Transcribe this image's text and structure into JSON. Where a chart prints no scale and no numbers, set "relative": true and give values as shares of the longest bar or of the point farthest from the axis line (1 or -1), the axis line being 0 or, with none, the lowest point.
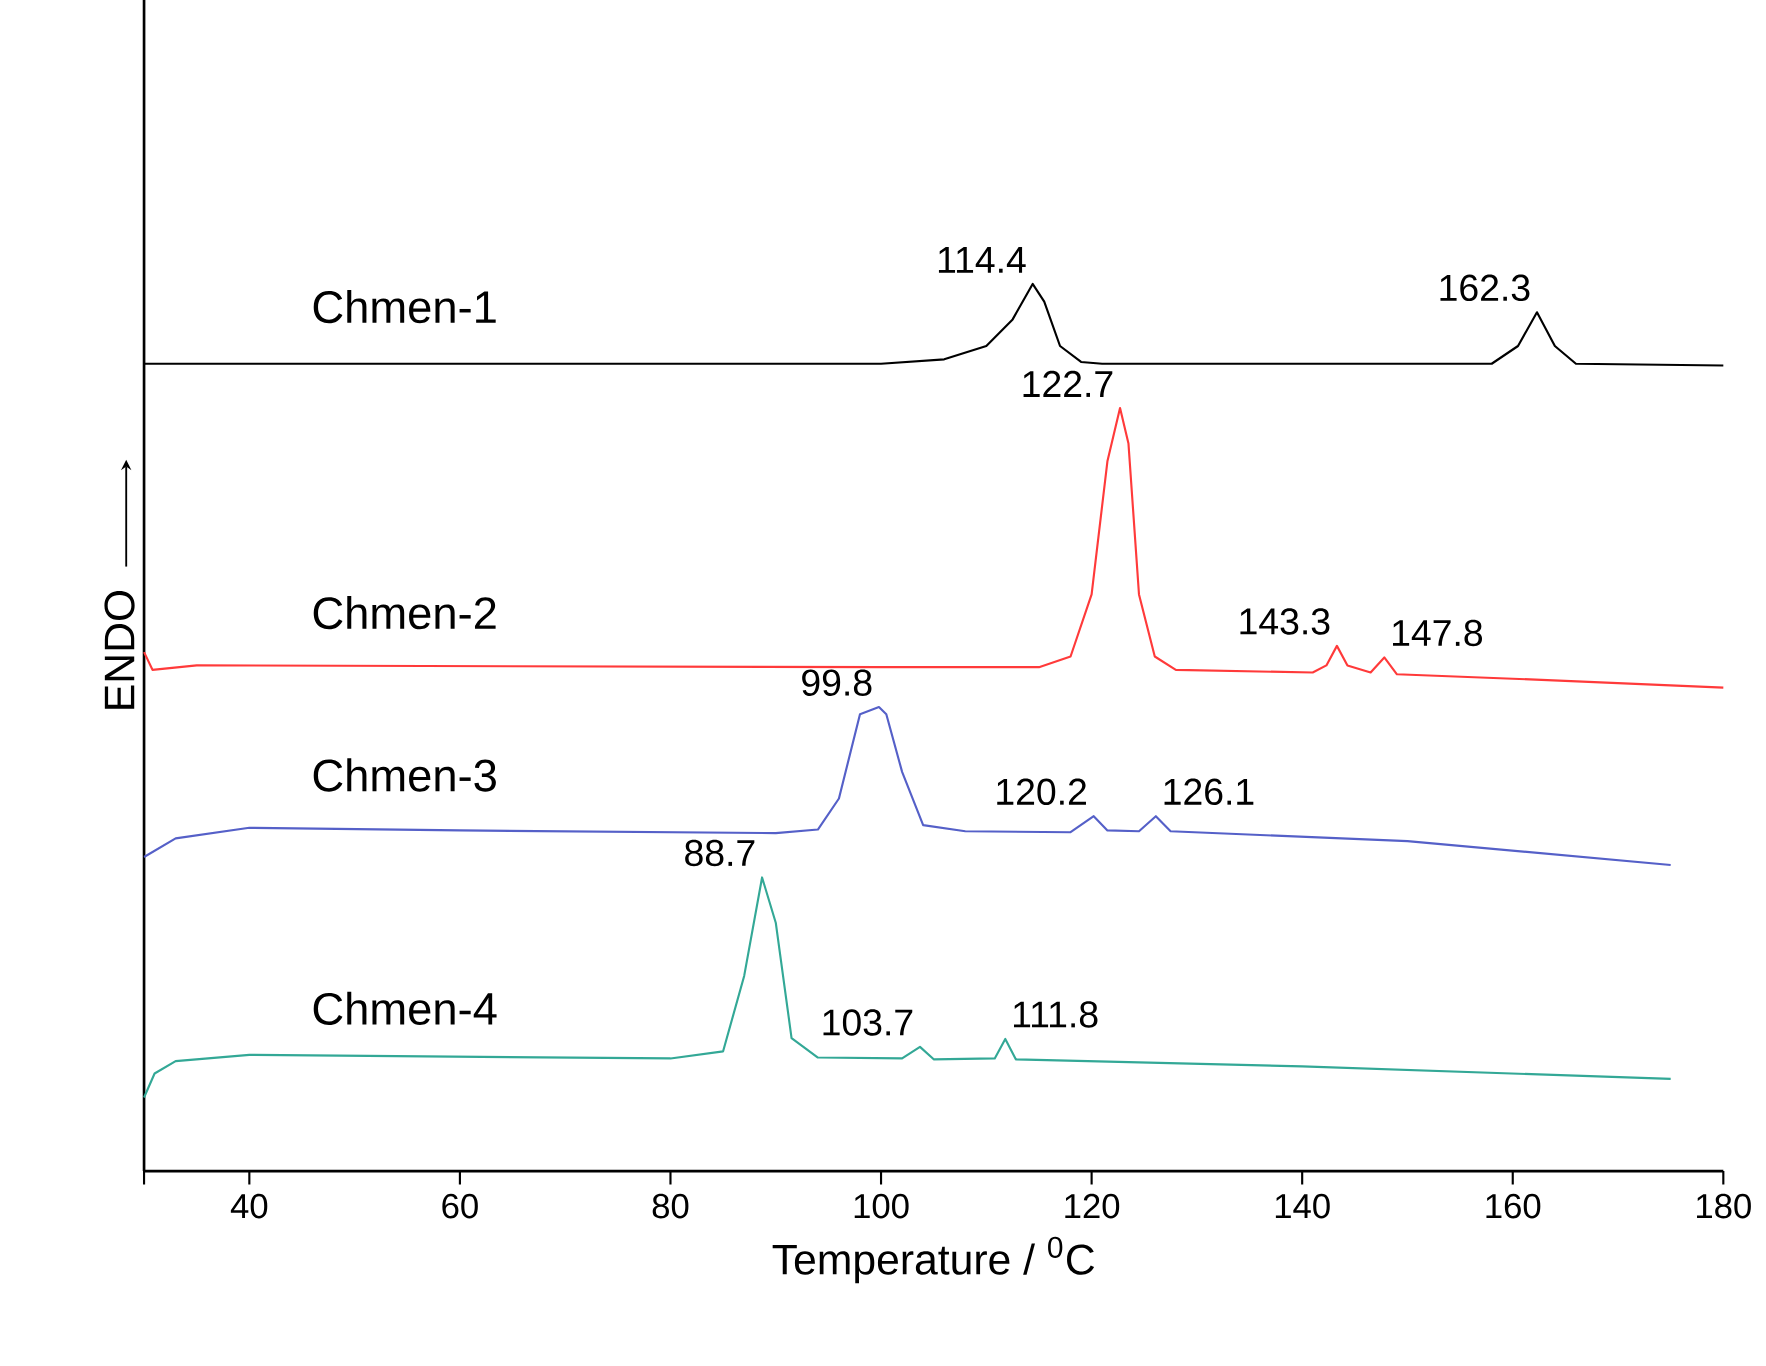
{
  "chart_data": {
    "type": "line",
    "relative": true,
    "xlabel": "Temperature / $^{0}$C",
    "ylabel": "ENDO",
    "xlim": [
      30,
      180
    ],
    "xticks": [
      {
        "value": 30,
        "label": null
      },
      40,
      60,
      80,
      100,
      120,
      140,
      160,
      180
    ],
    "series": [
      {
        "name": "Chmen-1",
        "color": "#000000",
        "x": [
          30,
          100,
          106,
          110,
          112.5,
          114.4,
          115.5,
          117,
          119,
          121,
          158,
          160.5,
          162.3,
          164,
          166,
          180
        ],
        "values": [
          0.91,
          0.91,
          0.915,
          0.93,
          0.96,
          1.0,
          0.98,
          0.93,
          0.912,
          0.91,
          0.91,
          0.93,
          0.968,
          0.93,
          0.91,
          0.908
        ]
      },
      {
        "name": "Chmen-2",
        "color": "#ff3a3a",
        "x": [
          30,
          30.8,
          35,
          100,
          115,
          118,
          120,
          121.5,
          122.7,
          123.5,
          124.5,
          126,
          128,
          141,
          142.3,
          143.3,
          144.3,
          146.5,
          147.8,
          149,
          160,
          180
        ],
        "values": [
          0.585,
          0.565,
          0.57,
          0.568,
          0.568,
          0.58,
          0.65,
          0.8,
          0.86,
          0.82,
          0.65,
          0.58,
          0.565,
          0.562,
          0.57,
          0.592,
          0.57,
          0.562,
          0.579,
          0.56,
          0.555,
          0.545
        ]
      },
      {
        "name": "Chmen-3",
        "color": "#5560c8",
        "x": [
          30,
          33,
          40,
          60,
          90,
          94,
          96,
          98,
          99.8,
          100.5,
          102,
          104,
          108,
          118,
          120.2,
          121.5,
          124.5,
          126.1,
          127.5,
          150,
          175
        ],
        "values": [
          0.354,
          0.375,
          0.387,
          0.384,
          0.381,
          0.385,
          0.42,
          0.515,
          0.523,
          0.515,
          0.45,
          0.39,
          0.383,
          0.382,
          0.4,
          0.384,
          0.383,
          0.4,
          0.383,
          0.372,
          0.345
        ]
      },
      {
        "name": "Chmen-4",
        "color": "#33a896",
        "x": [
          30,
          31,
          33,
          40,
          80,
          85,
          87,
          88.7,
          90,
          91.5,
          94,
          102,
          103.7,
          105,
          110.8,
          111.8,
          112.8,
          140,
          175
        ],
        "values": [
          0.083,
          0.11,
          0.124,
          0.131,
          0.127,
          0.135,
          0.22,
          0.331,
          0.28,
          0.15,
          0.128,
          0.127,
          0.14,
          0.126,
          0.127,
          0.149,
          0.126,
          0.118,
          0.104
        ]
      }
    ],
    "annotations": [
      {
        "text": "114.4",
        "x": 114.4,
        "y": 1.0
      },
      {
        "text": "162.3",
        "x": 162.3,
        "y": 0.968
      },
      {
        "text": "122.7",
        "x": 122.7,
        "y": 0.86
      },
      {
        "text": "143.3",
        "x": 143.3,
        "y": 0.592
      },
      {
        "text": "147.8",
        "x": 147.8,
        "y": 0.579
      },
      {
        "text": "99.8",
        "x": 99.8,
        "y": 0.523
      },
      {
        "text": "120.2",
        "x": 120.2,
        "y": 0.4
      },
      {
        "text": "126.1",
        "x": 126.1,
        "y": 0.4
      },
      {
        "text": "88.7",
        "x": 88.7,
        "y": 0.331
      },
      {
        "text": "103.7",
        "x": 103.7,
        "y": 0.14
      },
      {
        "text": "111.8",
        "x": 111.8,
        "y": 0.149
      }
    ]
  }
}
